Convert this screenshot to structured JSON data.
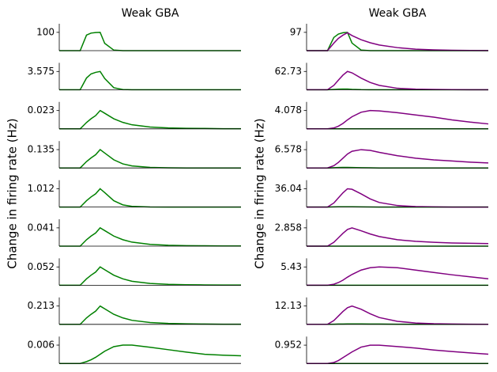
{
  "chart_data": [
    {
      "type": "line",
      "title": "Weak GBA",
      "ylabel": "Change in firing rate  (Hz)",
      "x": [
        0,
        2.3,
        3,
        3.5,
        4,
        4.5,
        5,
        6,
        7,
        8,
        10,
        12,
        14,
        16,
        18,
        20
      ],
      "xlim": [
        0,
        20
      ],
      "panels": [
        {
          "ylim": [
            0,
            147
          ],
          "yticks": [
            100
          ],
          "series": [
            {
              "color": "#008000",
              "values": [
                0,
                0,
                85,
                96,
                99,
                100,
                40,
                3,
                0,
                0,
                0,
                0,
                0,
                0,
                0,
                0
              ]
            }
          ]
        },
        {
          "ylim": [
            0,
            5.26
          ],
          "yticks": [
            3.575
          ],
          "series": [
            {
              "color": "#008000",
              "values": [
                0,
                0,
                2.3,
                3.1,
                3.4,
                3.575,
                2.2,
                0.4,
                0.05,
                0,
                0,
                0,
                0,
                0,
                0,
                0
              ]
            }
          ]
        },
        {
          "ylim": [
            0,
            0.0338
          ],
          "yticks": [
            0.023
          ],
          "series": [
            {
              "color": "#008000",
              "values": [
                0,
                0,
                0.008,
                0.0127,
                0.0166,
                0.023,
                0.0196,
                0.0127,
                0.0081,
                0.0051,
                0.0023,
                0.0012,
                0.0007,
                0.0005,
                0.0002,
                0.0002
              ]
            }
          ]
        },
        {
          "ylim": [
            0,
            0.198
          ],
          "yticks": [
            0.135
          ],
          "series": [
            {
              "color": "#008000",
              "values": [
                0,
                0,
                0.047,
                0.074,
                0.097,
                0.135,
                0.11,
                0.06,
                0.03,
                0.015,
                0.004,
                0.001,
                0,
                0,
                0,
                0
              ]
            }
          ]
        },
        {
          "ylim": [
            0,
            1.488
          ],
          "yticks": [
            1.012
          ],
          "series": [
            {
              "color": "#008000",
              "values": [
                0,
                0,
                0.35,
                0.56,
                0.73,
                1.012,
                0.8,
                0.35,
                0.12,
                0.04,
                0.005,
                0,
                0,
                0,
                0,
                0
              ]
            }
          ]
        },
        {
          "ylim": [
            0,
            0.0603
          ],
          "yticks": [
            0.041
          ],
          "series": [
            {
              "color": "#008000",
              "values": [
                0,
                0,
                0.0144,
                0.0226,
                0.0295,
                0.041,
                0.0349,
                0.0226,
                0.0144,
                0.009,
                0.0041,
                0.0021,
                0.0012,
                0.0008,
                0.0004,
                0.0004
              ]
            }
          ]
        },
        {
          "ylim": [
            0,
            0.0764
          ],
          "yticks": [
            0.052
          ],
          "series": [
            {
              "color": "#008000",
              "values": [
                0,
                0,
                0.0182,
                0.0286,
                0.0374,
                0.052,
                0.0442,
                0.0286,
                0.0182,
                0.0114,
                0.0052,
                0.0026,
                0.0016,
                0.001,
                0.0005,
                0.0005
              ]
            }
          ]
        },
        {
          "ylim": [
            0,
            0.313
          ],
          "yticks": [
            0.213
          ],
          "series": [
            {
              "color": "#008000",
              "values": [
                0,
                0,
                0.075,
                0.117,
                0.153,
                0.213,
                0.181,
                0.117,
                0.075,
                0.047,
                0.021,
                0.011,
                0.006,
                0.004,
                0.002,
                0.002
              ]
            }
          ]
        },
        {
          "ylim": [
            0,
            0.0088
          ],
          "yticks": [
            0.006
          ],
          "series": [
            {
              "color": "#008000",
              "values": [
                0,
                0,
                0.0006,
                0.0012,
                0.002,
                0.003,
                0.004,
                0.0055,
                0.006,
                0.006,
                0.0053,
                0.0045,
                0.0037,
                0.003,
                0.0027,
                0.0025
              ]
            }
          ]
        }
      ]
    },
    {
      "type": "line",
      "title": "Weak GBA",
      "ylabel": "Change in firing rate  (Hz)",
      "x": [
        0,
        2.3,
        3,
        3.5,
        4,
        4.5,
        5,
        6,
        7,
        8,
        10,
        12,
        14,
        16,
        18,
        20
      ],
      "xlim": [
        0,
        20
      ],
      "panels": [
        {
          "ylim": [
            0,
            142.6
          ],
          "yticks": [
            97
          ],
          "series": [
            {
              "color": "#008000",
              "values": [
                0,
                0,
                70,
                88,
                95,
                97,
                40,
                3,
                0,
                0,
                0,
                0,
                0,
                0,
                0,
                0
              ]
            },
            {
              "color": "#800080",
              "values": [
                0,
                0,
                40,
                65,
                82,
                95,
                80,
                58,
                42,
                30,
                16,
                8,
                4,
                2,
                1,
                0.5
              ]
            }
          ]
        },
        {
          "ylim": [
            0,
            92.2
          ],
          "yticks": [
            62.73
          ],
          "series": [
            {
              "color": "#008000",
              "values": [
                0,
                0,
                1,
                2,
                2.5,
                2.5,
                1.5,
                0.3,
                0,
                0,
                0,
                0,
                0,
                0,
                0,
                0
              ]
            },
            {
              "color": "#800080",
              "values": [
                0,
                0,
                15,
                33,
                50,
                62.73,
                58,
                40,
                25,
                15,
                5,
                2,
                1,
                0.5,
                0,
                0
              ]
            }
          ]
        },
        {
          "ylim": [
            0,
            5.99
          ],
          "yticks": [
            4.078
          ],
          "series": [
            {
              "color": "#008000",
              "values": [
                0,
                0,
                0,
                0,
                0,
                0,
                0,
                0,
                0,
                0,
                0,
                0,
                0,
                0,
                0,
                0
              ]
            },
            {
              "color": "#800080",
              "values": [
                0,
                0,
                0.2,
                0.6,
                1.2,
                2,
                2.7,
                3.7,
                4.078,
                4.0,
                3.6,
                3.1,
                2.6,
                2.0,
                1.5,
                1.1
              ]
            }
          ]
        },
        {
          "ylim": [
            0,
            9.67
          ],
          "yticks": [
            6.578
          ],
          "series": [
            {
              "color": "#008000",
              "values": [
                0,
                0,
                0.1,
                0.15,
                0.2,
                0.2,
                0.15,
                0.1,
                0.05,
                0,
                0,
                0,
                0,
                0,
                0,
                0
              ]
            },
            {
              "color": "#800080",
              "values": [
                0,
                0,
                0.8,
                2,
                3.5,
                5,
                6,
                6.578,
                6.3,
                5.6,
                4.4,
                3.5,
                2.9,
                2.5,
                2.1,
                1.8
              ]
            }
          ]
        },
        {
          "ylim": [
            0,
            53
          ],
          "yticks": [
            36.04
          ],
          "series": [
            {
              "color": "#008000",
              "values": [
                0,
                0,
                0.3,
                0.5,
                0.6,
                0.6,
                0.5,
                0.3,
                0.1,
                0,
                0,
                0,
                0,
                0,
                0,
                0
              ]
            },
            {
              "color": "#800080",
              "values": [
                0,
                0,
                8,
                18,
                28,
                36.04,
                35,
                26,
                16,
                9,
                3,
                1,
                0.3,
                0,
                0,
                0
              ]
            }
          ]
        },
        {
          "ylim": [
            0,
            4.2
          ],
          "yticks": [
            2.858
          ],
          "series": [
            {
              "color": "#008000",
              "values": [
                0,
                0,
                0,
                0,
                0,
                0,
                0,
                0,
                0,
                0,
                0,
                0,
                0,
                0,
                0,
                0
              ]
            },
            {
              "color": "#800080",
              "values": [
                0,
                0,
                0.6,
                1.3,
                2.0,
                2.6,
                2.858,
                2.4,
                1.9,
                1.5,
                1.0,
                0.75,
                0.6,
                0.5,
                0.45,
                0.4
              ]
            }
          ]
        },
        {
          "ylim": [
            0,
            7.98
          ],
          "yticks": [
            5.43
          ],
          "series": [
            {
              "color": "#008000",
              "values": [
                0,
                0,
                0,
                0,
                0,
                0,
                0,
                0,
                0,
                0,
                0,
                0,
                0,
                0,
                0,
                0
              ]
            },
            {
              "color": "#800080",
              "values": [
                0,
                0,
                0.3,
                0.8,
                1.5,
                2.4,
                3.2,
                4.5,
                5.2,
                5.43,
                5.2,
                4.5,
                3.8,
                3.1,
                2.5,
                1.9
              ]
            }
          ]
        },
        {
          "ylim": [
            0,
            17.8
          ],
          "yticks": [
            12.13
          ],
          "series": [
            {
              "color": "#008000",
              "values": [
                0,
                0,
                0.1,
                0.2,
                0.25,
                0.3,
                0.3,
                0.3,
                0.25,
                0.2,
                0.1,
                0.05,
                0,
                0,
                0,
                0
              ]
            },
            {
              "color": "#800080",
              "values": [
                0,
                0,
                2.5,
                5.5,
                8.5,
                11,
                12.13,
                10,
                7,
                4.5,
                2,
                0.9,
                0.4,
                0.2,
                0.1,
                0
              ]
            }
          ]
        },
        {
          "ylim": [
            0,
            1.4
          ],
          "yticks": [
            0.952
          ],
          "series": [
            {
              "color": "#008000",
              "values": [
                0,
                0,
                0,
                0,
                0,
                0,
                0,
                0,
                0,
                0,
                0,
                0,
                0,
                0,
                0,
                0
              ]
            },
            {
              "color": "#800080",
              "values": [
                0,
                0,
                0.05,
                0.15,
                0.3,
                0.45,
                0.6,
                0.85,
                0.952,
                0.95,
                0.88,
                0.8,
                0.7,
                0.62,
                0.55,
                0.48
              ]
            }
          ]
        }
      ]
    }
  ]
}
